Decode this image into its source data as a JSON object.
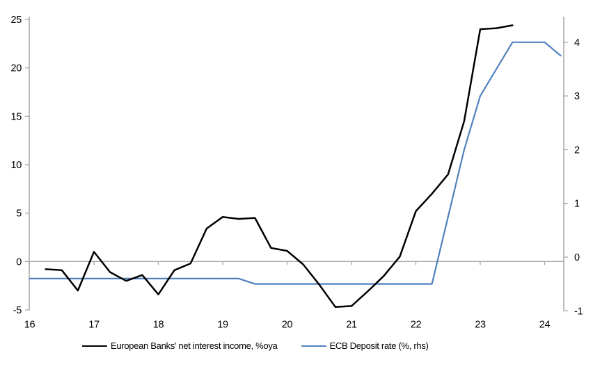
{
  "chart": {
    "title": "",
    "colors": {
      "nii_line": "#000000",
      "deposit_line": "#4f81bd",
      "axis": "#a6a6a6",
      "text": "#000000",
      "background": "#ffffff"
    }
  },
  "chart_data": {
    "type": "line",
    "title": "",
    "grid": "zero-line-only",
    "legend_position": "bottom-center",
    "x_axis": {
      "tick_values": [
        16,
        17,
        18,
        19,
        20,
        21,
        22,
        23,
        24
      ],
      "tick_labels": [
        "16",
        "17",
        "18",
        "19",
        "20",
        "21",
        "22",
        "23",
        "24"
      ],
      "range": [
        16,
        24.3
      ]
    },
    "left_axis": {
      "tick_values": [
        25,
        20,
        15,
        10,
        5,
        0,
        -5
      ],
      "tick_labels": [
        "25",
        "20",
        "15",
        "10",
        "5",
        "0",
        "-5"
      ],
      "range": [
        -5,
        25
      ]
    },
    "right_axis": {
      "tick_values": [
        4,
        3,
        2,
        1,
        0,
        -1
      ],
      "tick_labels": [
        "4",
        "3",
        "2",
        "1",
        "0",
        "-1"
      ],
      "range": [
        -1,
        4
      ]
    },
    "series": [
      {
        "name": "European Banks' net interest income, %oya",
        "axis": "left",
        "color": "#000000",
        "x_start": 16.25,
        "x_step": 0.25,
        "values": [
          -0.8,
          -0.9,
          -3.0,
          1.0,
          -1.1,
          -2.0,
          -1.4,
          -3.4,
          -0.9,
          -0.2,
          3.4,
          4.6,
          4.4,
          4.5,
          1.4,
          1.1,
          -0.3,
          -2.4,
          -4.7,
          -4.6,
          -3.1,
          -1.5,
          0.5,
          5.2,
          7.0,
          9.0,
          14.5,
          24.0,
          24.1,
          24.4
        ]
      },
      {
        "name": "ECB Deposit rate (%, rhs)",
        "axis": "right",
        "color": "#4f81bd",
        "x_start": 16.0,
        "x_step": 0.25,
        "values": [
          -0.4,
          -0.4,
          -0.4,
          -0.4,
          -0.4,
          -0.4,
          -0.4,
          -0.4,
          -0.4,
          -0.4,
          -0.4,
          -0.4,
          -0.4,
          -0.4,
          -0.5,
          -0.5,
          -0.5,
          -0.5,
          -0.5,
          -0.5,
          -0.5,
          -0.5,
          -0.5,
          -0.5,
          -0.5,
          -0.5,
          0.75,
          2.0,
          3.0,
          3.5,
          4.0,
          4.0,
          4.0,
          3.75
        ]
      }
    ]
  }
}
